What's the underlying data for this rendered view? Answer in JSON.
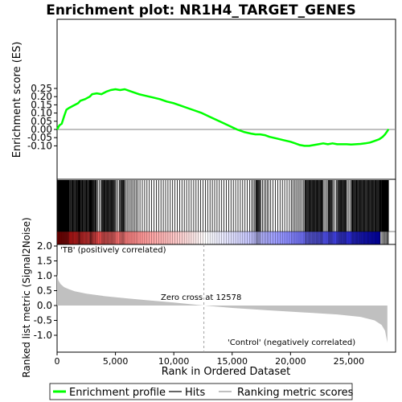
{
  "chart_data": {
    "type": "line",
    "title": "Enrichment plot: NR1H4_TARGET_GENES",
    "top_panel": {
      "ylabel": "Enrichment score (ES)",
      "ylim": [
        -0.12,
        0.26
      ],
      "yticks": [
        0.25,
        0.2,
        0.15,
        0.1,
        0.05,
        0.0,
        -0.05,
        -0.1
      ],
      "ytick_labels": [
        "0.25",
        "0.20",
        "0.15",
        "0.10",
        "0.05",
        "0.00",
        "-0.05",
        "-0.10"
      ],
      "series": [
        {
          "name": "Enrichment profile",
          "color": "#00ff00",
          "x": [
            0,
            200,
            400,
            600,
            800,
            1000,
            1400,
            1800,
            2000,
            2400,
            2800,
            3000,
            3400,
            3800,
            4200,
            4600,
            5000,
            5400,
            5800,
            6200,
            6600,
            7000,
            7600,
            8200,
            8800,
            9400,
            10000,
            10600,
            11200,
            11800,
            12400,
            13000,
            13600,
            14200,
            14800,
            15400,
            16000,
            16600,
            17000,
            17400,
            17800,
            18200,
            18800,
            19400,
            20000,
            20400,
            20800,
            21200,
            21600,
            22000,
            22400,
            22800,
            23200,
            23600,
            24000,
            24400,
            24800,
            25200,
            25600,
            26000,
            26400,
            26800,
            27200,
            27600,
            27900,
            28100,
            28300,
            28400
          ],
          "y": [
            0.0,
            0.025,
            0.035,
            0.08,
            0.12,
            0.13,
            0.145,
            0.16,
            0.175,
            0.185,
            0.2,
            0.215,
            0.22,
            0.215,
            0.23,
            0.24,
            0.245,
            0.24,
            0.245,
            0.235,
            0.225,
            0.215,
            0.205,
            0.195,
            0.185,
            0.17,
            0.16,
            0.145,
            0.13,
            0.115,
            0.1,
            0.08,
            0.06,
            0.04,
            0.02,
            0.0,
            -0.015,
            -0.025,
            -0.03,
            -0.03,
            -0.035,
            -0.045,
            -0.055,
            -0.065,
            -0.075,
            -0.085,
            -0.095,
            -0.1,
            -0.1,
            -0.095,
            -0.09,
            -0.085,
            -0.09,
            -0.085,
            -0.09,
            -0.09,
            -0.09,
            -0.092,
            -0.09,
            -0.088,
            -0.085,
            -0.08,
            -0.07,
            -0.06,
            -0.045,
            -0.03,
            -0.01,
            0.002
          ]
        }
      ],
      "zero_line_color": "#808080"
    },
    "hits_panel": {
      "name": "Hits",
      "color": "#000000",
      "gradient_colors": [
        "#ff0000",
        "#ffffff",
        "#0000ff"
      ]
    },
    "bottom_panel": {
      "ylabel": "Ranked list metric (Signal2Noise)",
      "xlabel": "Rank in Ordered Dataset",
      "ylim": [
        -1.4,
        2.0
      ],
      "yticks": [
        2.0,
        1.5,
        1.0,
        0.5,
        0.0,
        -0.5,
        -1.0
      ],
      "ytick_labels": [
        "2.0",
        "1.5",
        "1.0",
        "0.5",
        "0.0",
        "-0.5",
        "-1.0"
      ],
      "xlim": [
        0,
        29000
      ],
      "xticks": [
        0,
        5000,
        10000,
        15000,
        20000,
        25000
      ],
      "xtick_labels": [
        "0",
        "5,000",
        "10,000",
        "15,000",
        "20,000",
        "25,000"
      ],
      "series_name": "Ranking metric scores",
      "metric_color": "#c0c0c0",
      "metric_points": [
        {
          "x": 0,
          "y": 1.05
        },
        {
          "x": 100,
          "y": 0.85
        },
        {
          "x": 300,
          "y": 0.72
        },
        {
          "x": 600,
          "y": 0.62
        },
        {
          "x": 1000,
          "y": 0.55
        },
        {
          "x": 1500,
          "y": 0.48
        },
        {
          "x": 2500,
          "y": 0.4
        },
        {
          "x": 4000,
          "y": 0.32
        },
        {
          "x": 6000,
          "y": 0.24
        },
        {
          "x": 8000,
          "y": 0.17
        },
        {
          "x": 10000,
          "y": 0.1
        },
        {
          "x": 12578,
          "y": 0.0
        },
        {
          "x": 15000,
          "y": -0.08
        },
        {
          "x": 18000,
          "y": -0.16
        },
        {
          "x": 21000,
          "y": -0.23
        },
        {
          "x": 24000,
          "y": -0.3
        },
        {
          "x": 26000,
          "y": -0.38
        },
        {
          "x": 27200,
          "y": -0.5
        },
        {
          "x": 27800,
          "y": -0.65
        },
        {
          "x": 28100,
          "y": -0.85
        },
        {
          "x": 28300,
          "y": -1.25
        }
      ],
      "zero_cross": 12578,
      "zero_cross_label": "Zero cross at 12578",
      "positive_label": "'TB' (positively correlated)",
      "positive_color": "#ff0000",
      "negative_label": "'Control' (negatively correlated)",
      "negative_color": "#0000ff"
    },
    "legend": {
      "entries": [
        {
          "label": "Enrichment profile",
          "color": "#00ff00"
        },
        {
          "label": "Hits",
          "color": "#000000"
        },
        {
          "label": "Ranking metric scores",
          "color": "#c0c0c0"
        }
      ]
    }
  }
}
